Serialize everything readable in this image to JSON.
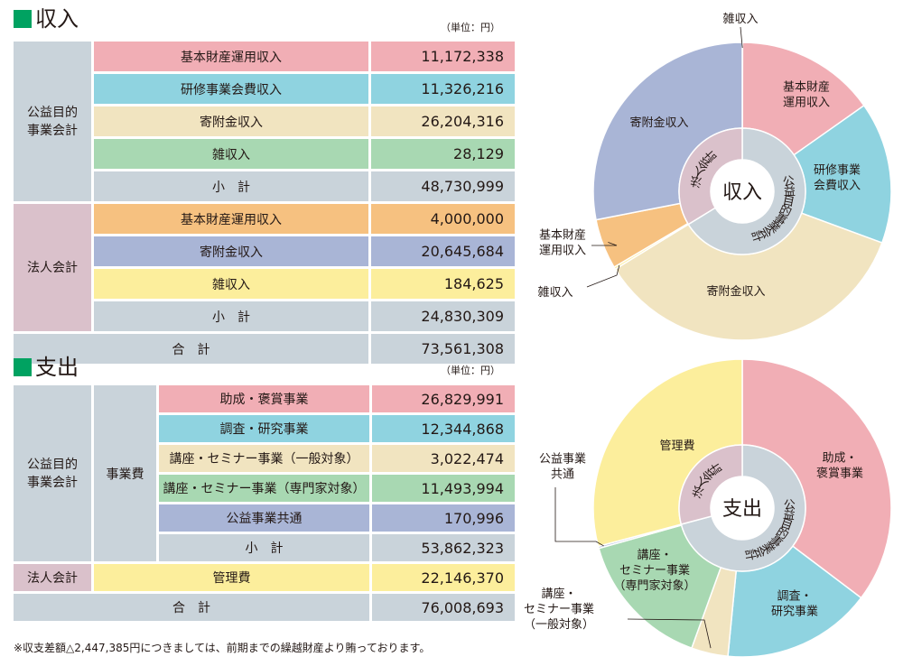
{
  "unit_label": "（単位：円）",
  "note": "※収支差額△2,447,385円につきましては、前期までの繰越財産より賄っております。",
  "colors": {
    "accent": "#00a261",
    "pink": "#f1aeb5",
    "cyan": "#8fd3e0",
    "beige": "#f1e4c0",
    "green": "#a8d8b2",
    "grey": "#c9d3da",
    "orange": "#f6c180",
    "lavender": "#a9b5d6",
    "yellow": "#fcee9c",
    "mauve": "#dac1cb"
  },
  "income": {
    "title": "収入",
    "groups": [
      {
        "name_lines": [
          "公益目的",
          "事業会計"
        ],
        "rows": [
          {
            "label": "基本財産運用収入",
            "value": "11,172,338",
            "color": "#f1aeb5"
          },
          {
            "label": "研修事業会費収入",
            "value": "11,326,216",
            "color": "#8fd3e0"
          },
          {
            "label": "寄附金収入",
            "value": "26,204,316",
            "color": "#f1e4c0"
          },
          {
            "label": "雑収入",
            "value": "28,129",
            "color": "#a8d8b2"
          },
          {
            "label": "小　計",
            "value": "48,730,999",
            "color": "#c9d3da"
          }
        ]
      },
      {
        "name_lines": [
          "法人会計"
        ],
        "rows": [
          {
            "label": "基本財産運用収入",
            "value": "4,000,000",
            "color": "#f6c180"
          },
          {
            "label": "寄附金収入",
            "value": "20,645,684",
            "color": "#a9b5d6"
          },
          {
            "label": "雑収入",
            "value": "184,625",
            "color": "#fcee9c"
          },
          {
            "label": "小　計",
            "value": "24,830,309",
            "color": "#c9d3da"
          }
        ]
      }
    ],
    "total": {
      "label": "合　計",
      "value": "73,561,308"
    }
  },
  "expense": {
    "title": "支出",
    "group_name_lines": [
      "公益目的",
      "事業会計"
    ],
    "category": "事業費",
    "rows": [
      {
        "label": "助成・褒賞事業",
        "value": "26,829,991",
        "color": "#f1aeb5"
      },
      {
        "label": "調査・研究事業",
        "value": "12,344,868",
        "color": "#8fd3e0"
      },
      {
        "label": "講座・セミナー事業（一般対象）",
        "value": "3,022,474",
        "color": "#f1e4c0"
      },
      {
        "label": "講座・セミナー事業（専門家対象）",
        "value": "11,493,994",
        "color": "#a8d8b2"
      },
      {
        "label": "公益事業共通",
        "value": "170,996",
        "color": "#a9b5d6"
      },
      {
        "label": "小　計",
        "value": "53,862,323",
        "color": "#c9d3da"
      }
    ],
    "corp": {
      "name": "法人会計",
      "label": "管理費",
      "value": "22,146,370",
      "color": "#fcee9c"
    },
    "total": {
      "label": "合　計",
      "value": "76,008,693"
    }
  },
  "chart_data": [
    {
      "type": "pie",
      "center_label": "収入",
      "inner_ring": [
        {
          "name": "公益目的事業会計",
          "value": 48730999,
          "color": "#c9d3da"
        },
        {
          "name": "法人会計",
          "value": 24830309,
          "color": "#dac1cb"
        }
      ],
      "slices": [
        {
          "lines": [
            "雑収入"
          ],
          "value": 28129,
          "color": "#a8d8b2"
        },
        {
          "lines": [
            "基本財産",
            "運用収入"
          ],
          "value": 11172338,
          "color": "#f1aeb5"
        },
        {
          "lines": [
            "研修事業",
            "会費収入"
          ],
          "value": 11326216,
          "color": "#8fd3e0"
        },
        {
          "lines": [
            "寄附金収入"
          ],
          "value": 26204316,
          "color": "#f1e4c0"
        },
        {
          "lines": [
            "雑収入"
          ],
          "value": 184625,
          "color": "#fcee9c"
        },
        {
          "lines": [
            "基本財産",
            "運用収入"
          ],
          "value": 4000000,
          "color": "#f6c180"
        },
        {
          "lines": [
            "寄附金収入"
          ],
          "value": 20645684,
          "color": "#a9b5d6"
        }
      ]
    },
    {
      "type": "pie",
      "center_label": "支出",
      "inner_ring": [
        {
          "name": "公益目的事業会計",
          "value": 53862323,
          "color": "#c9d3da"
        },
        {
          "name": "法人会計",
          "value": 22146370,
          "color": "#dac1cb"
        }
      ],
      "slices": [
        {
          "lines": [
            "助成・",
            "褒賞事業"
          ],
          "value": 26829991,
          "color": "#f1aeb5"
        },
        {
          "lines": [
            "調査・",
            "研究事業"
          ],
          "value": 12344868,
          "color": "#8fd3e0"
        },
        {
          "lines": [
            "講座・",
            "セミナー事業",
            "（一般対象）"
          ],
          "value": 3022474,
          "color": "#f1e4c0"
        },
        {
          "lines": [
            "講座・",
            "セミナー事業",
            "（専門家対象）"
          ],
          "value": 11493994,
          "color": "#a8d8b2"
        },
        {
          "lines": [
            "公益事業",
            "共通"
          ],
          "value": 170996,
          "color": "#a9b5d6"
        },
        {
          "lines": [
            "管理費"
          ],
          "value": 22146370,
          "color": "#fcee9c"
        }
      ]
    }
  ]
}
